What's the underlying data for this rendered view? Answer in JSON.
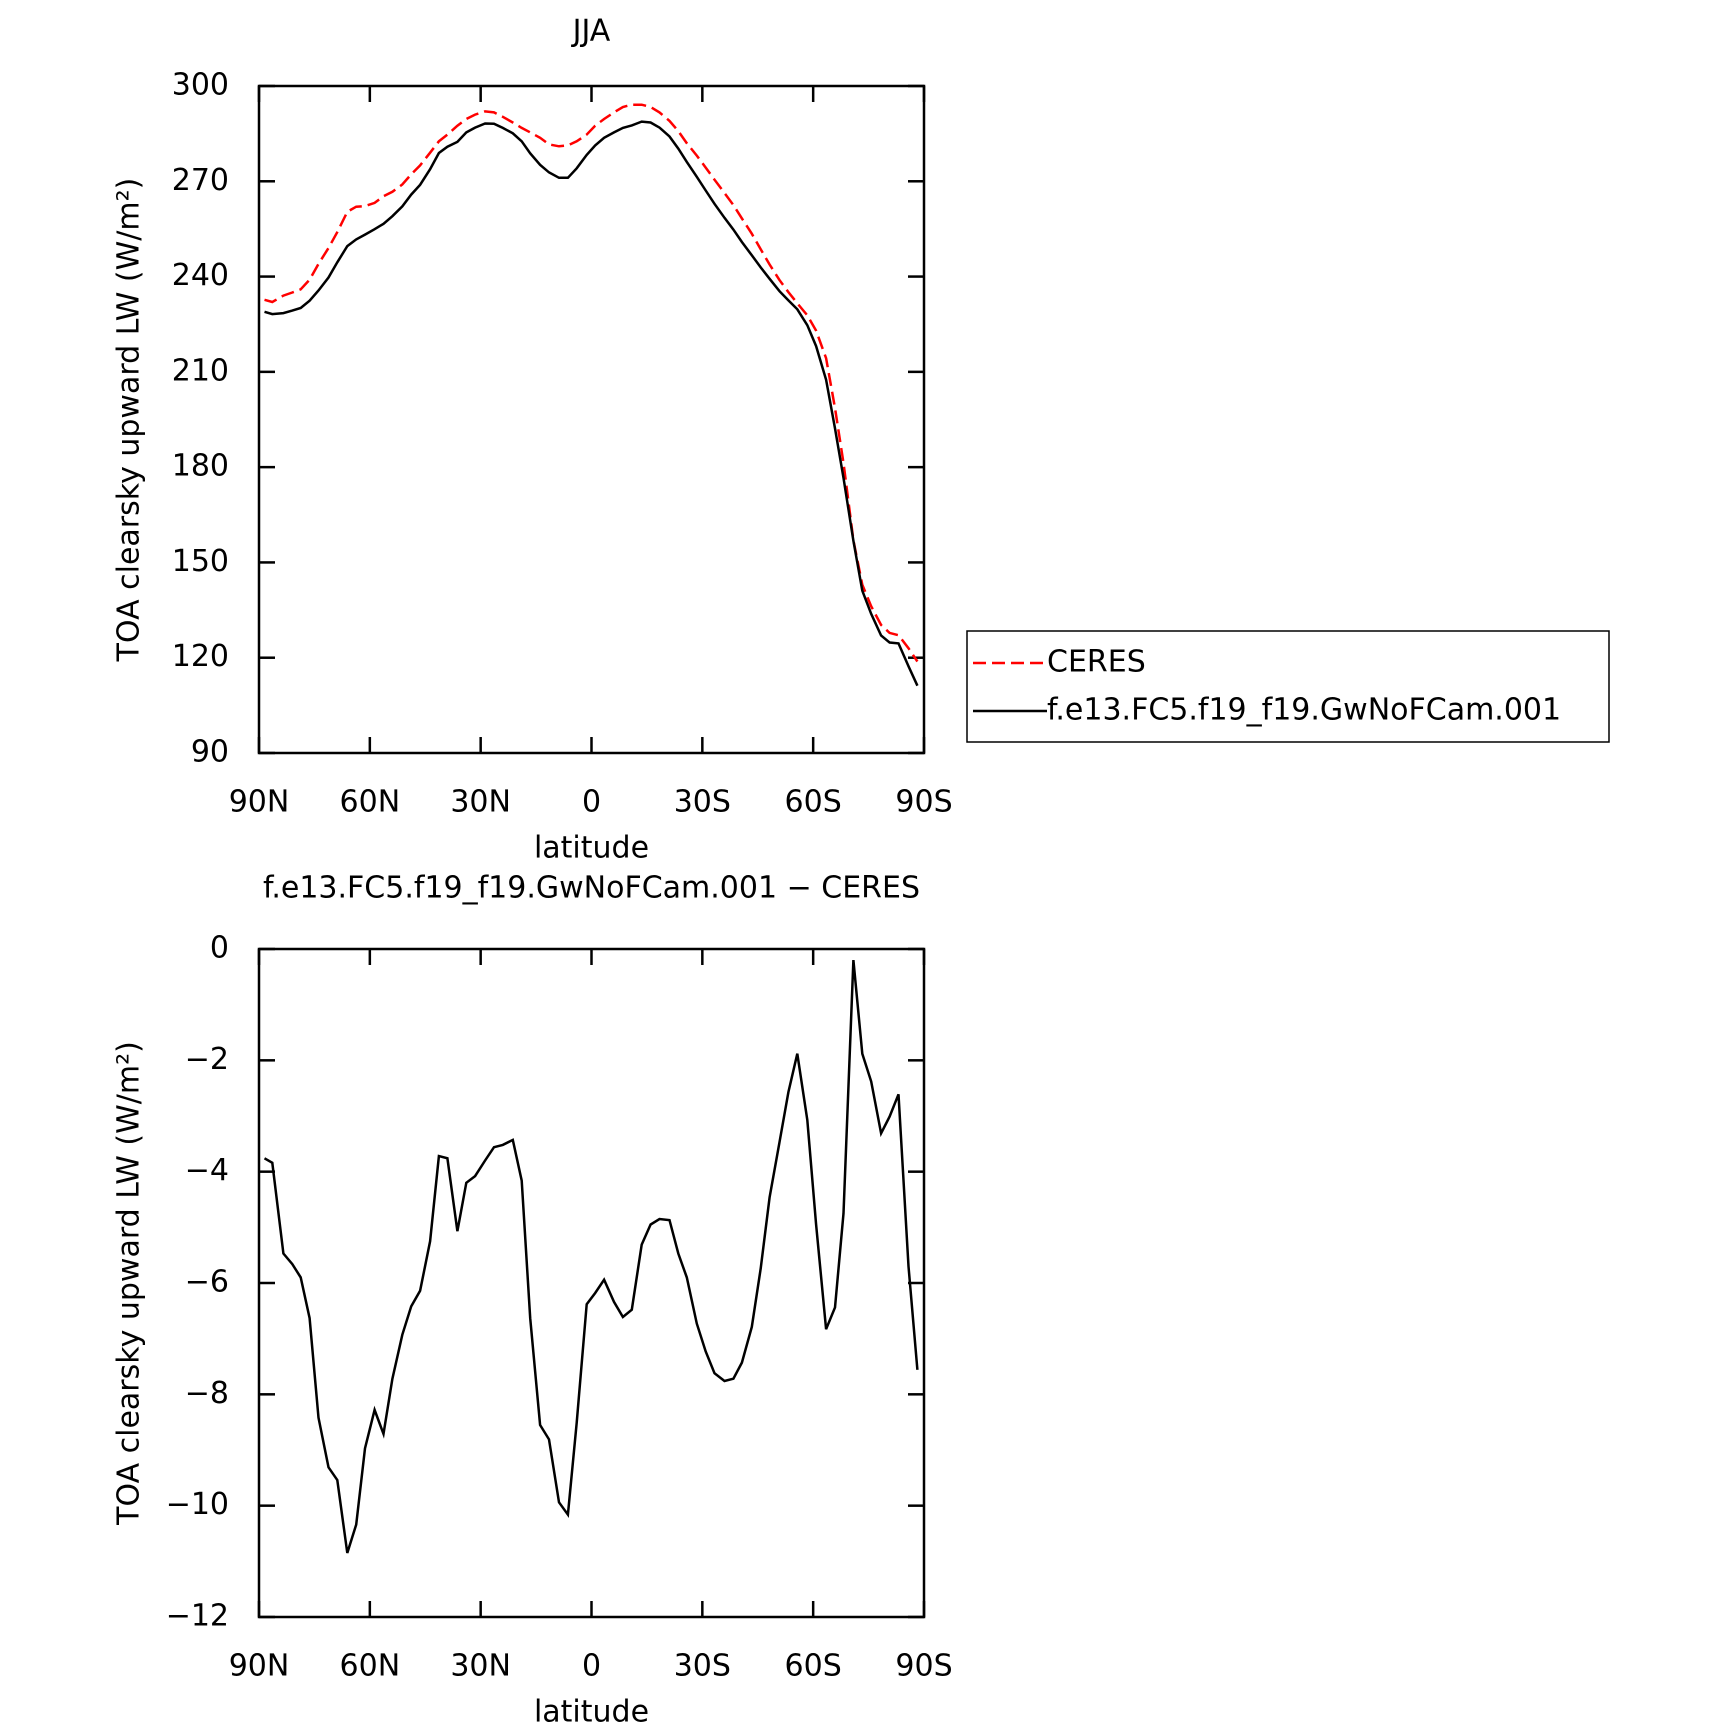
{
  "chart_data": [
    {
      "type": "line",
      "title": "JJA",
      "ylabel": "TOA clearsky upward LW (W/m²)",
      "xlabel": "latitude",
      "xlim": [
        90,
        -90
      ],
      "xticks": [
        {
          "value": 90,
          "label": "90N"
        },
        {
          "value": 60,
          "label": "60N"
        },
        {
          "value": 30,
          "label": "30N"
        },
        0,
        {
          "value": -30,
          "label": "30S"
        },
        {
          "value": -60,
          "label": "60S"
        },
        {
          "value": -90,
          "label": "90S"
        }
      ],
      "ylim": [
        90,
        300
      ],
      "yticks": [
        90,
        120,
        150,
        180,
        210,
        240,
        270,
        300
      ],
      "legend": "right",
      "x": [
        88.5,
        86.4,
        83.4,
        81,
        78.7,
        76.3,
        73.9,
        71.2,
        68.8,
        66.1,
        63.7,
        61.3,
        58.7,
        56.3,
        53.9,
        51.2,
        48.8,
        46.4,
        43.7,
        41.3,
        39,
        36.3,
        33.9,
        31.5,
        28.8,
        26.4,
        24,
        21.3,
        18.9,
        16.6,
        13.9,
        11.5,
        8.8,
        6.4,
        4,
        1.3,
        -1,
        -3.4,
        -6.1,
        -8.5,
        -10.9,
        -13.6,
        -16,
        -18.4,
        -21.1,
        -23.5,
        -25.8,
        -28.5,
        -30.9,
        -33.3,
        -36,
        -38.4,
        -40.7,
        -43.4,
        -45.8,
        -48.2,
        -50.9,
        -53.3,
        -55.7,
        -58.4,
        -60.8,
        -63.5,
        -65.9,
        -68.2,
        -70.9,
        -73.3,
        -75.7,
        -78.4,
        -80.7,
        -83.1,
        -85.8,
        -88.2
      ],
      "series": [
        {
          "name": "CERES",
          "color": "#ff0000",
          "dash": true,
          "values": [
            232.7,
            232,
            234,
            235,
            236,
            239,
            244,
            249,
            254,
            260.4,
            262,
            262.2,
            263.2,
            265.3,
            266.7,
            269,
            272.2,
            275,
            279,
            282.6,
            284.7,
            287.5,
            289.6,
            291,
            292,
            291.7,
            290.3,
            288.5,
            286.8,
            285.4,
            283.7,
            281.6,
            281,
            281.3,
            282.6,
            284.7,
            287.5,
            289.6,
            291.7,
            293.4,
            294.1,
            294.1,
            293.4,
            291.7,
            289,
            285.8,
            282,
            278.1,
            274.3,
            270.5,
            266.3,
            262.5,
            258.3,
            253.5,
            248.6,
            243.8,
            238.9,
            235.1,
            231.6,
            227.8,
            223,
            214.3,
            198.6,
            181.3,
            157,
            143,
            136.2,
            130.3,
            127.8,
            127.1,
            123,
            118.8
          ]
        },
        {
          "name": "f.e13.FC5.f19_f19.GwNoFCam.001",
          "color": "#000000",
          "dash": false,
          "values": [
            228.9,
            228.2,
            228.5,
            229.3,
            230.1,
            232.4,
            235.6,
            239.7,
            244.5,
            249.6,
            251.7,
            253.2,
            254.9,
            256.6,
            259,
            262.1,
            265.8,
            268.9,
            273.8,
            278.9,
            280.9,
            282.4,
            285.4,
            286.9,
            288.2,
            288.1,
            286.8,
            285.1,
            282.6,
            278.8,
            275.2,
            272.8,
            271.1,
            271.1,
            274.1,
            278.3,
            281.3,
            283.7,
            285.4,
            286.8,
            287.6,
            288.8,
            288.5,
            286.9,
            284.1,
            280.3,
            276.1,
            271.4,
            267.1,
            262.9,
            258.5,
            254.8,
            250.9,
            246.7,
            242.9,
            239.3,
            235.4,
            232.5,
            229.7,
            224.7,
            218.1,
            207.5,
            192.2,
            176.6,
            156.8,
            141.1,
            133.8,
            127,
            124.8,
            124.5,
            117.3,
            111.2
          ]
        }
      ]
    },
    {
      "type": "line",
      "title": "f.e13.FC5.f19_f19.GwNoFCam.001 − CERES",
      "ylabel": "TOA clearsky upward LW (W/m²)",
      "xlabel": "latitude",
      "xlim": [
        90,
        -90
      ],
      "xticks": [
        {
          "value": 90,
          "label": "90N"
        },
        {
          "value": 60,
          "label": "60N"
        },
        {
          "value": 30,
          "label": "30N"
        },
        0,
        {
          "value": -30,
          "label": "30S"
        },
        {
          "value": -60,
          "label": "60S"
        },
        {
          "value": -90,
          "label": "90S"
        }
      ],
      "ylim": [
        -12,
        0
      ],
      "yticks": [
        {
          "value": -12,
          "label": "−12"
        },
        {
          "value": -10,
          "label": "−10"
        },
        {
          "value": -8,
          "label": "−8"
        },
        {
          "value": -6,
          "label": "−6"
        },
        {
          "value": -4,
          "label": "−4"
        },
        {
          "value": -2,
          "label": "−2"
        },
        0
      ],
      "x": [
        88.5,
        86.4,
        83.4,
        81,
        78.7,
        76.3,
        73.9,
        71.2,
        68.8,
        66.1,
        63.7,
        61.3,
        58.7,
        56.3,
        53.9,
        51.2,
        48.8,
        46.4,
        43.7,
        41.3,
        39,
        36.3,
        33.9,
        31.5,
        28.8,
        26.4,
        24,
        21.3,
        18.9,
        16.6,
        13.9,
        11.5,
        8.8,
        6.4,
        4,
        1.3,
        -1,
        -3.4,
        -6.1,
        -8.5,
        -10.9,
        -13.6,
        -16,
        -18.4,
        -21.1,
        -23.5,
        -25.8,
        -28.5,
        -30.9,
        -33.3,
        -36,
        -38.4,
        -40.7,
        -43.4,
        -45.8,
        -48.2,
        -50.9,
        -53.3,
        -55.7,
        -58.4,
        -60.8,
        -63.5,
        -65.9,
        -68.2,
        -70.9,
        -73.3,
        -75.7,
        -78.4,
        -80.7,
        -83.1,
        -85.8,
        -88.2
      ],
      "color": "#000000",
      "values": [
        -3.76,
        -3.84,
        -5.47,
        -5.66,
        -5.9,
        -6.63,
        -8.42,
        -9.31,
        -9.54,
        -10.85,
        -10.34,
        -8.97,
        -8.28,
        -8.71,
        -7.72,
        -6.93,
        -6.42,
        -6.14,
        -5.25,
        -3.72,
        -3.76,
        -5.07,
        -4.2,
        -4.08,
        -3.8,
        -3.56,
        -3.52,
        -3.43,
        -4.16,
        -6.63,
        -8.55,
        -8.81,
        -9.94,
        -10.16,
        -8.51,
        -6.38,
        -6.18,
        -5.94,
        -6.34,
        -6.61,
        -6.48,
        -5.31,
        -4.95,
        -4.85,
        -4.87,
        -5.47,
        -5.9,
        -6.73,
        -7.23,
        -7.62,
        -7.76,
        -7.72,
        -7.43,
        -6.79,
        -5.74,
        -4.46,
        -3.47,
        -2.57,
        -1.88,
        -3.07,
        -4.95,
        -6.83,
        -6.44,
        -4.75,
        -0.2,
        -1.88,
        -2.38,
        -3.31,
        -3.01,
        -2.61,
        -5.7,
        -7.56
      ]
    }
  ]
}
